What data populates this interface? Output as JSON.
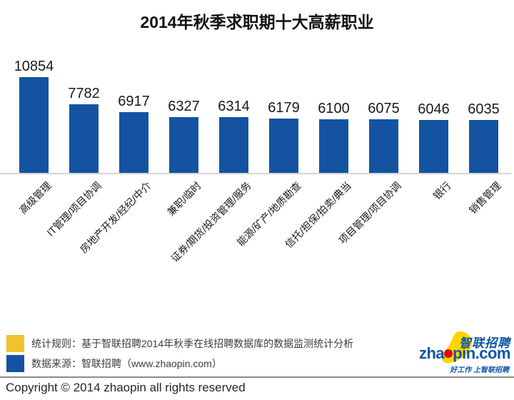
{
  "title": "2014年秋季求职期十大高薪职业",
  "chart_data": {
    "type": "bar",
    "title": "2014年秋季求职期十大高薪职业",
    "categories": [
      "高级管理",
      "IT管理/项目协调",
      "房地产开发/经纪/中介",
      "兼职/临时",
      "证券/期货/投资管理/服务",
      "能源/矿产/地质勘查",
      "信托/担保/拍卖/典当",
      "项目管理/项目协调",
      "银行",
      "销售管理"
    ],
    "values": [
      10854,
      7782,
      6917,
      6327,
      6314,
      6179,
      6100,
      6075,
      6046,
      6035
    ],
    "xlabel": "",
    "ylabel": "",
    "ylim": [
      0,
      11000
    ],
    "bar_color": "#1453A1",
    "grid": false,
    "value_labels": "above-bars",
    "category_label_rotation": 45,
    "legend_position": "none"
  },
  "legend": {
    "items": [
      {
        "swatch_color": "#F0C32E",
        "label": "统计规则：基于智联招聘2014年秋季在线招聘数据库的数据监测统计分析"
      },
      {
        "swatch_color": "#1453A1",
        "label": "数据来源：智联招聘（www.zhaopin.com）"
      }
    ]
  },
  "logo": {
    "brand_cn": "智联招聘",
    "domain_prefix": "zha",
    "domain_suffix": "pin.com",
    "tagline": "好工作 上智联招聘",
    "blue": "#0B55A5",
    "yellow": "#FFD400",
    "red": "#E60012"
  },
  "footer": {
    "copyright": "Copyright © 2014 zhaopin all rights reserved"
  }
}
